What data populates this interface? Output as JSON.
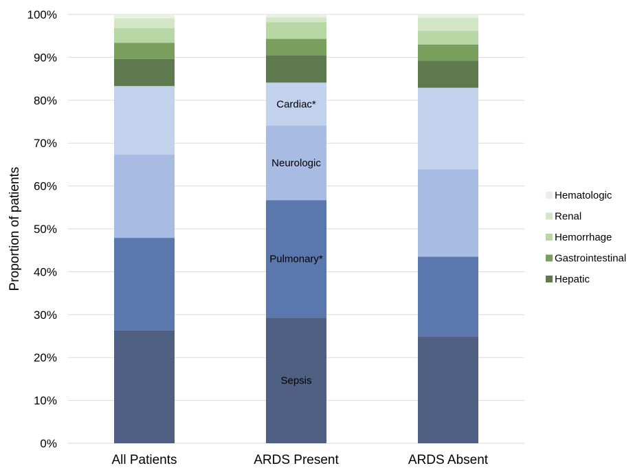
{
  "chart_data": {
    "type": "bar",
    "stacked": true,
    "categories": [
      "All Patients",
      "ARDS Present",
      "ARDS Absent"
    ],
    "ylabel": "Proportion of patients",
    "ylim": [
      0,
      100
    ],
    "yticks": [
      "0%",
      "10%",
      "20%",
      "30%",
      "40%",
      "50%",
      "60%",
      "70%",
      "80%",
      "90%",
      "100%"
    ],
    "grid": true,
    "legend_position": "right",
    "series": [
      {
        "name": "Sepsis",
        "color": "#4f6082",
        "values": [
          26.3,
          29.3,
          24.9
        ],
        "segment_label": "Sepsis"
      },
      {
        "name": "Pulmonary",
        "color": "#5a78ae",
        "values": [
          21.6,
          27.4,
          18.6
        ],
        "segment_label": "Pulmonary*"
      },
      {
        "name": "Neurologic",
        "color": "#a7bbe3",
        "values": [
          19.4,
          17.4,
          20.4
        ],
        "segment_label": "Neurologic"
      },
      {
        "name": "Cardiac",
        "color": "#c2d2ec",
        "values": [
          16.0,
          10.0,
          19.0
        ],
        "segment_label": "Cardiac*"
      },
      {
        "name": "Hepatic",
        "color": "#5f7a4f",
        "values": [
          6.3,
          6.4,
          6.3
        ]
      },
      {
        "name": "Gastrointestinal",
        "color": "#789f5c",
        "values": [
          3.8,
          3.8,
          3.8
        ]
      },
      {
        "name": "Hemorrhage",
        "color": "#b7d8a4",
        "values": [
          3.4,
          3.9,
          3.2
        ]
      },
      {
        "name": "Renal",
        "color": "#d3e7c7",
        "values": [
          2.3,
          1.1,
          3.0
        ]
      },
      {
        "name": "Hematologic",
        "color": "#e7f2e2",
        "values": [
          0.9,
          0.7,
          0.8
        ]
      }
    ],
    "legend": [
      "Hematologic",
      "Renal",
      "Hemorrhage",
      "Gastrointestinal",
      "Hepatic"
    ],
    "labelled_category": "ARDS Present"
  }
}
